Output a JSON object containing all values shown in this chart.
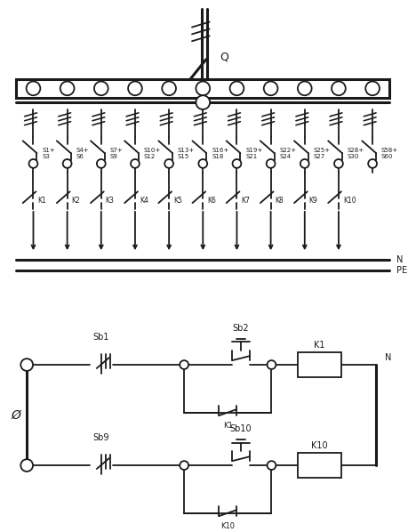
{
  "bg_color": "#ffffff",
  "line_color": "#1a1a1a",
  "n_outputs": 11,
  "n_contactors": 10,
  "output_labels_top": [
    "S1+\nS3",
    "S4+\nS6",
    "S7+\nS9",
    "S10+\nS12",
    "S13+\nS15",
    "S16+\nS18",
    "S19+\nS21",
    "S22+\nS24",
    "S25+\nS27",
    "S28+\nS30",
    "S58+\nS60"
  ],
  "output_labels_bot": [
    "K1",
    "K2",
    "K3",
    "K4",
    "K5",
    "K6",
    "K7",
    "K8",
    "K9",
    "K10"
  ],
  "sb1_label": "Sb1",
  "sb2_label": "Sb2",
  "sb9_label": "Sb9",
  "sb10_label": "Sb10",
  "k1_label": "K1",
  "k10_label": "K10",
  "N_label": "N",
  "PE_label": "PE",
  "Q_label": "Q",
  "phi_label": "Ø"
}
